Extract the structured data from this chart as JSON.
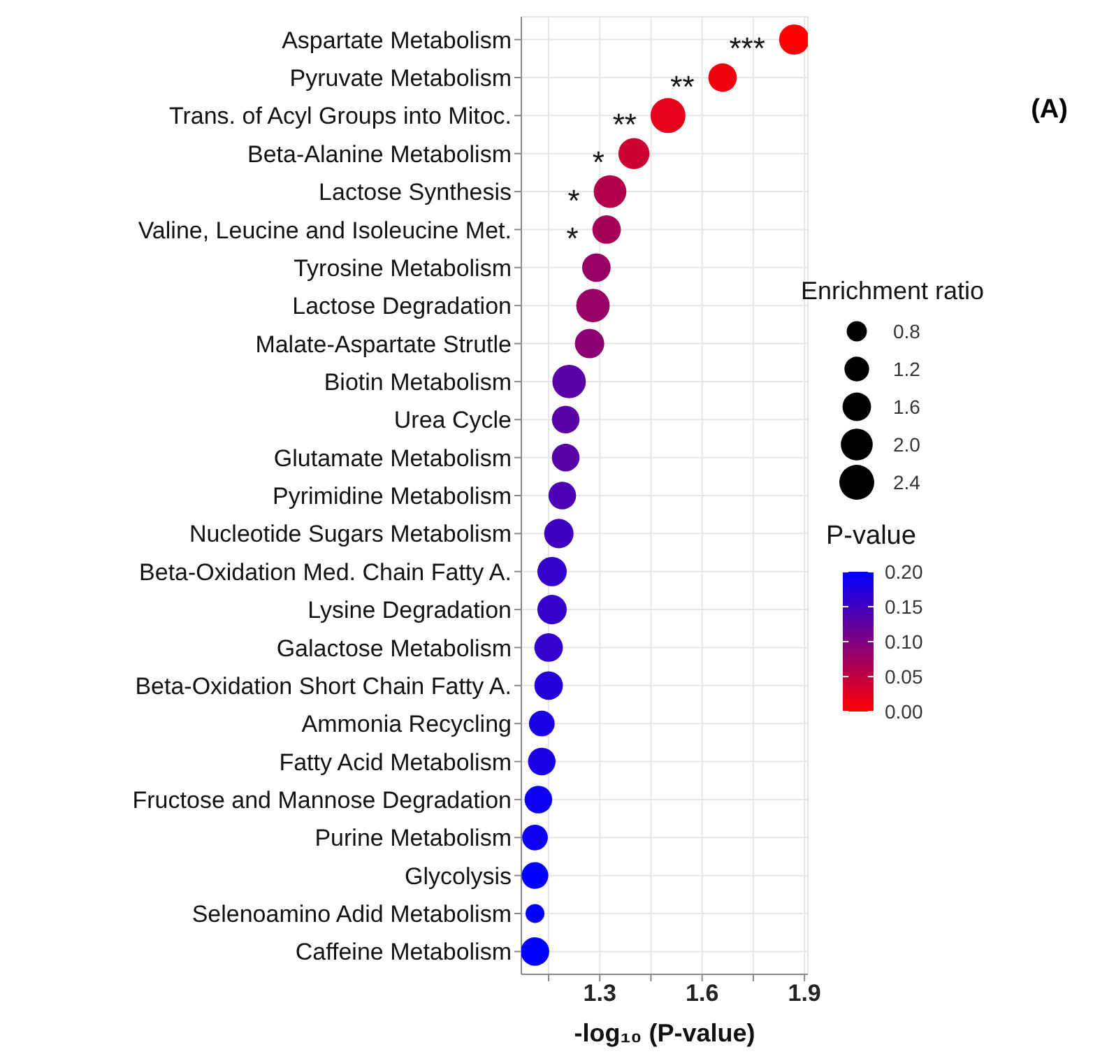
{
  "chart_data": {
    "type": "bubble",
    "orientation": "horizontal",
    "categories": [
      "Aspartate Metabolism",
      "Pyruvate Metabolism",
      "Trans. of Acyl Groups into Mitoc.",
      "Beta-Alanine Metabolism",
      "Lactose Synthesis",
      "Valine, Leucine and Isoleucine Met.",
      "Tyrosine Metabolism",
      "Lactose Degradation",
      "Malate-Aspartate Strutle",
      "Biotin Metabolism",
      "Urea Cycle",
      "Glutamate Metabolism",
      "Pyrimidine Metabolism",
      "Nucleotide Sugars Metabolism",
      "Beta-Oxidation Med. Chain Fatty A.",
      "Lysine Degradation",
      "Galactose Metabolism",
      "Beta-Oxidation Short Chain Fatty A.",
      "Ammonia Recycling",
      "Fatty Acid Metabolism",
      "Fructose and Mannose Degradation",
      "Purine Metabolism",
      "Glycolysis",
      "Selenoamino Adid Metabolism",
      "Caffeine Metabolism"
    ],
    "values": [
      1.87,
      1.66,
      1.5,
      1.4,
      1.33,
      1.32,
      1.29,
      1.28,
      1.27,
      1.21,
      1.2,
      1.2,
      1.19,
      1.18,
      1.16,
      1.16,
      1.15,
      1.15,
      1.13,
      1.13,
      1.12,
      1.11,
      1.11,
      1.11,
      1.11
    ],
    "sizes": [
      1.8,
      1.6,
      2.4,
      1.9,
      2.1,
      1.6,
      1.6,
      2.2,
      1.7,
      2.2,
      1.5,
      1.5,
      1.5,
      1.7,
      1.7,
      1.7,
      1.6,
      1.6,
      1.3,
      1.5,
      1.5,
      1.3,
      1.4,
      0.7,
      1.6
    ],
    "cvalues": [
      0.0,
      0.01,
      0.02,
      0.04,
      0.06,
      0.07,
      0.08,
      0.08,
      0.09,
      0.13,
      0.13,
      0.13,
      0.14,
      0.15,
      0.16,
      0.16,
      0.16,
      0.17,
      0.18,
      0.18,
      0.19,
      0.19,
      0.2,
      0.2,
      0.2
    ],
    "size_legend": [
      {
        "value": 0.8,
        "label": "0.8"
      },
      {
        "value": 1.2,
        "label": "1.2"
      },
      {
        "value": 1.6,
        "label": "1.6"
      },
      {
        "value": 2,
        "label": "2.0"
      },
      {
        "value": 2.4,
        "label": "2.4"
      }
    ],
    "clim": [
      0,
      0.2
    ],
    "cticks": [
      {
        "value": 0,
        "label": "0.00"
      },
      {
        "value": 0.05,
        "label": "0.05"
      },
      {
        "value": 0.1,
        "label": "0.10"
      },
      {
        "value": 0.15,
        "label": "0.15"
      },
      {
        "value": 0.2,
        "label": "0.20"
      }
    ],
    "legend_title": "Enrichment ratio",
    "clabel": "P-value",
    "xlabel": "-log₁₀ (P-value)",
    "xlim": [
      1.07,
      1.91
    ],
    "xticks": [
      {
        "value": 1.15,
        "label": null
      },
      1.3,
      {
        "value": 1.45,
        "label": null
      },
      1.6,
      {
        "value": 1.75,
        "label": null
      },
      1.9
    ],
    "grid": true,
    "annotations": [
      {
        "text": "***",
        "x": 1.87,
        "y": "Aspartate Metabolism"
      },
      {
        "text": "**",
        "x": 1.66,
        "y": "Pyruvate Metabolism"
      },
      {
        "text": "**",
        "x": 1.5,
        "y": "Trans. of Acyl Groups into Mitoc."
      },
      {
        "text": "*",
        "x": 1.4,
        "y": "Beta-Alanine Metabolism"
      },
      {
        "text": "*",
        "x": 1.33,
        "y": "Lactose Synthesis"
      },
      {
        "text": "*",
        "x": 1.32,
        "y": "Valine, Leucine and Isoleucine Met."
      },
      "(A)"
    ]
  }
}
